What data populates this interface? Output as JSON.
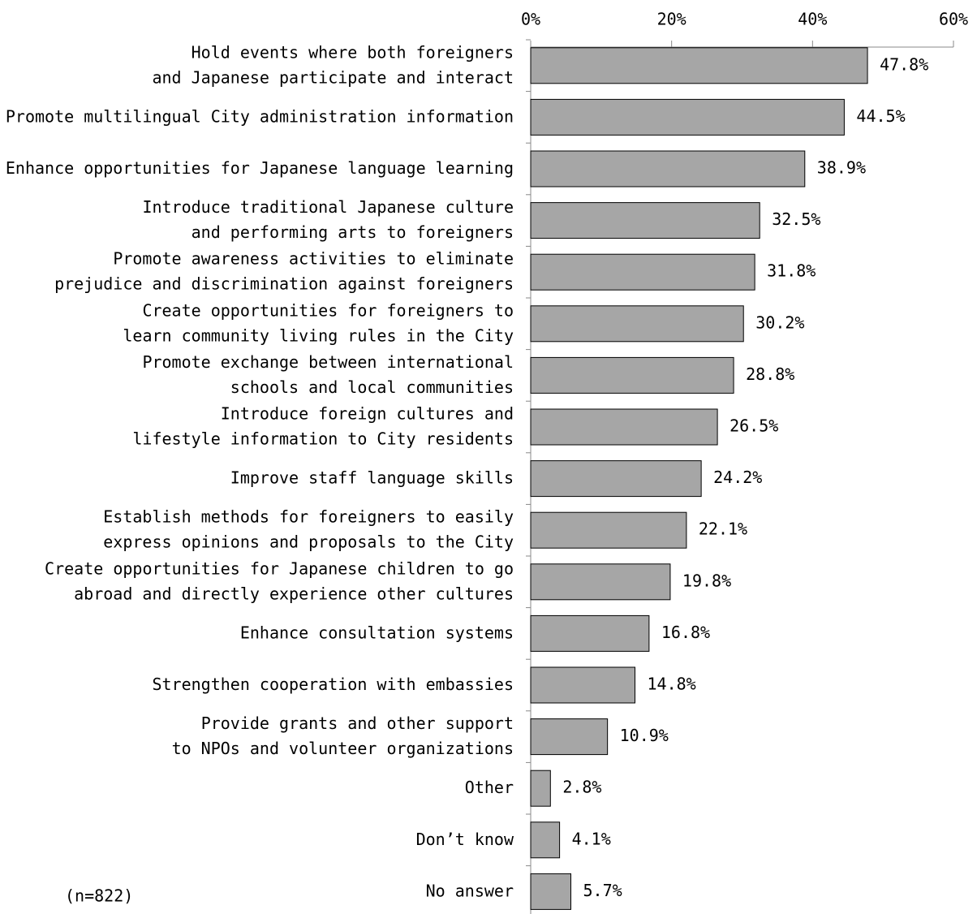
{
  "chart_data": {
    "type": "bar",
    "orientation": "horizontal",
    "categories": [
      [
        "Hold events where both foreigners",
        "and Japanese participate and interact"
      ],
      [
        "Promote multilingual City administration information"
      ],
      [
        "Enhance opportunities for Japanese language learning"
      ],
      [
        "Introduce traditional Japanese culture",
        "and performing arts to foreigners"
      ],
      [
        "Promote awareness activities to eliminate",
        "prejudice and discrimination against foreigners"
      ],
      [
        "Create opportunities for foreigners to",
        "learn community living rules in the City"
      ],
      [
        "Promote exchange between international",
        "schools and local communities"
      ],
      [
        "Introduce foreign cultures and",
        "lifestyle information to City residents"
      ],
      [
        "Improve staff language skills"
      ],
      [
        "Establish methods for foreigners to easily",
        "express opinions and proposals to the City"
      ],
      [
        "Create opportunities for Japanese children to go",
        "abroad and directly experience other cultures"
      ],
      [
        "Enhance consultation systems"
      ],
      [
        "Strengthen cooperation with embassies"
      ],
      [
        "Provide grants and other support",
        "to NPOs and volunteer organizations"
      ],
      [
        "Other"
      ],
      [
        "Don’t know"
      ],
      [
        "No answer"
      ]
    ],
    "values": [
      47.8,
      44.5,
      38.9,
      32.5,
      31.8,
      30.2,
      28.8,
      26.5,
      24.2,
      22.1,
      19.8,
      16.8,
      14.8,
      10.9,
      2.8,
      4.1,
      5.7
    ],
    "value_labels": [
      "47.8%",
      "44.5%",
      "38.9%",
      "32.5%",
      "31.8%",
      "30.2%",
      "28.8%",
      "26.5%",
      "24.2%",
      "22.1%",
      "19.8%",
      "16.8%",
      "14.8%",
      "10.9%",
      "2.8%",
      "4.1%",
      "5.7%"
    ],
    "color": "#a6a6a6",
    "xlim": [
      0,
      60
    ],
    "xticks": [
      {
        "value": 0,
        "label": "0%"
      },
      {
        "value": 20,
        "label": "20%"
      },
      {
        "value": 40,
        "label": "40%"
      },
      {
        "value": 60,
        "label": "60%"
      }
    ],
    "grid": false,
    "annotation": "(n=822)"
  }
}
